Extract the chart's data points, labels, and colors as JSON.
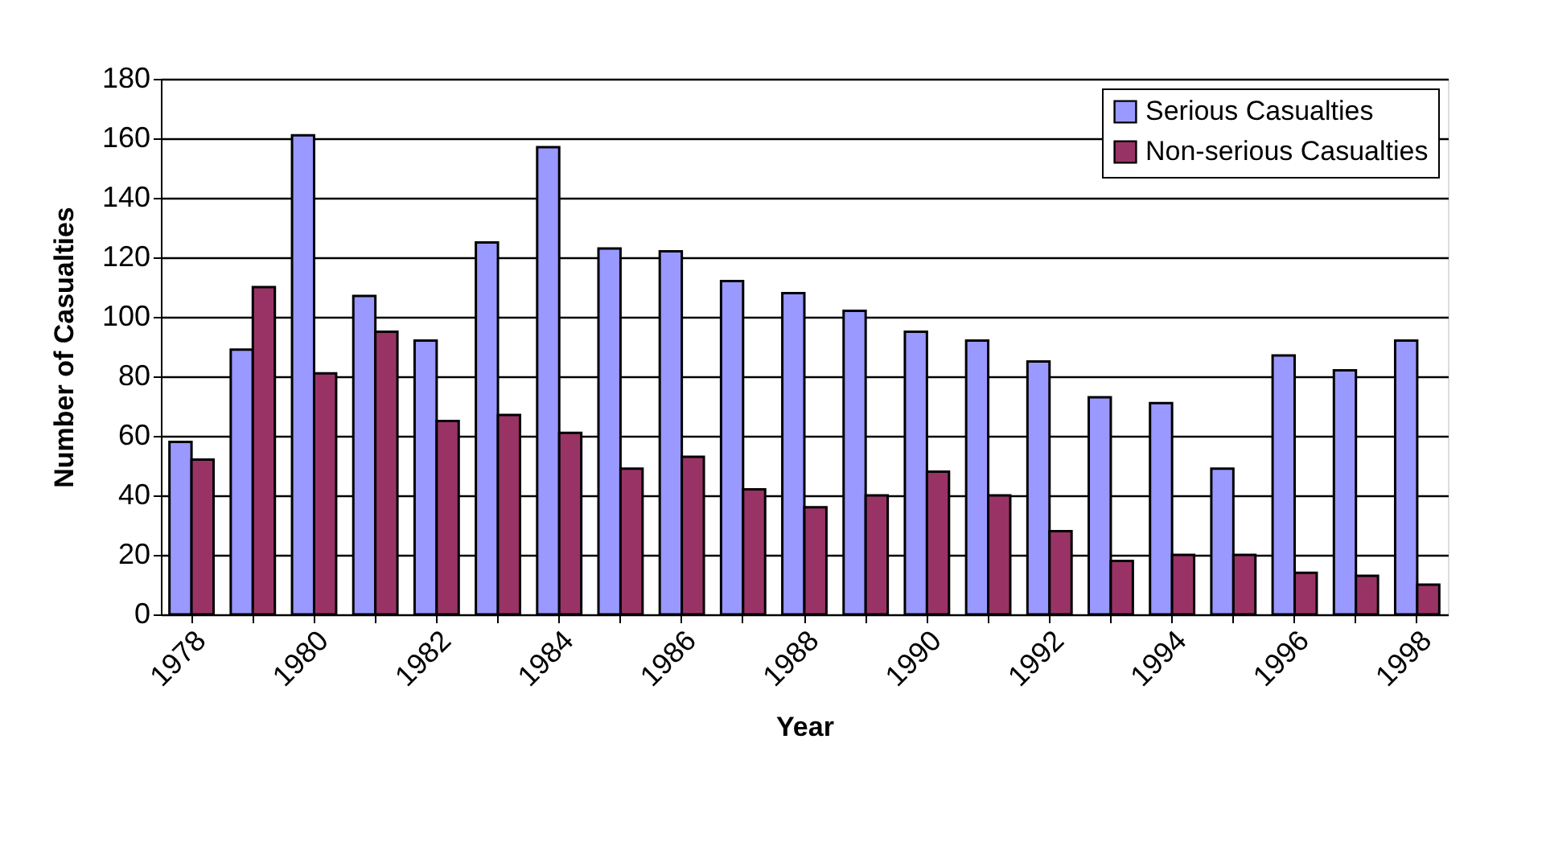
{
  "chart_data": {
    "type": "bar",
    "xlabel": "Year",
    "ylabel": "Number of Casualties",
    "categories": [
      "1978",
      null,
      "1980",
      null,
      "1982",
      null,
      "1984",
      null,
      "1986",
      null,
      "1988",
      null,
      "1990",
      null,
      "1992",
      null,
      "1994",
      null,
      "1996",
      null,
      "1998"
    ],
    "series": [
      {
        "name": "Serious Casualties",
        "color": "#9999ff",
        "values": [
          58,
          89,
          161,
          107,
          92,
          125,
          157,
          123,
          122,
          112,
          108,
          102,
          95,
          92,
          85,
          73,
          71,
          49,
          87,
          82,
          92
        ]
      },
      {
        "name": "Non-serious Casualties",
        "color": "#993366",
        "values": [
          52,
          110,
          81,
          95,
          65,
          67,
          61,
          49,
          53,
          42,
          36,
          40,
          48,
          40,
          28,
          18,
          20,
          20,
          14,
          13,
          10
        ]
      }
    ],
    "ylim": [
      0,
      180
    ],
    "yticks": [
      0,
      20,
      40,
      60,
      80,
      100,
      120,
      140,
      160,
      180
    ],
    "grid": "y",
    "legend": "top right"
  }
}
